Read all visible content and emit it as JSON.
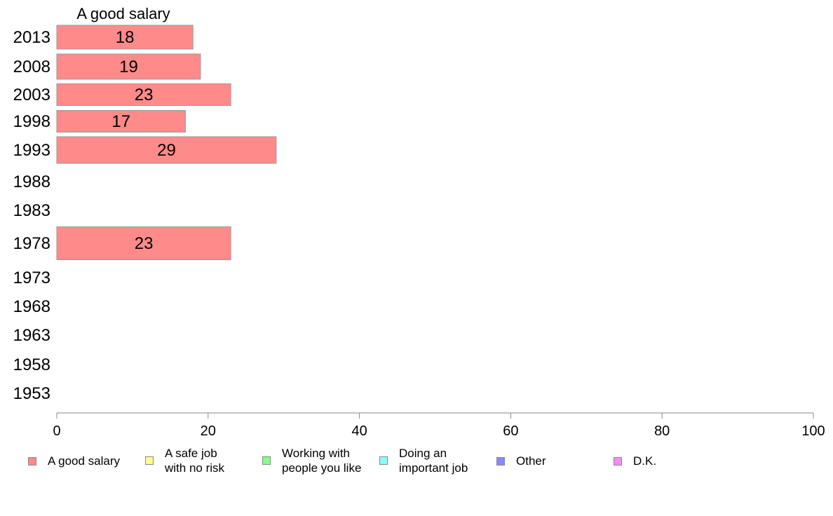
{
  "chart_data": {
    "type": "bar",
    "orientation": "horizontal",
    "title": "A good salary",
    "categories": [
      "2013",
      "2008",
      "2003",
      "1998",
      "1993",
      "1988",
      "1983",
      "1978",
      "1973",
      "1968",
      "1963",
      "1958",
      "1953"
    ],
    "series": [
      {
        "name": "A good salary",
        "color": "#ff8a8a",
        "values": [
          18,
          19,
          23,
          17,
          29,
          null,
          null,
          23,
          null,
          null,
          null,
          null,
          null
        ]
      }
    ],
    "data_labels": [
      "18",
      "19",
      "23",
      "17",
      "29",
      "",
      "",
      "23",
      "",
      "",
      "",
      "",
      ""
    ],
    "xlim": [
      0,
      100
    ],
    "xticks": [
      "0",
      "20",
      "40",
      "60",
      "80",
      "100"
    ],
    "grid": false
  },
  "legend": {
    "placement": "bottom",
    "items": [
      {
        "label": "A good salary",
        "color": "#ff8a8a"
      },
      {
        "label": "A safe job\nwith no risk",
        "color": "#ffff88"
      },
      {
        "label": "Working with\npeople you like",
        "color": "#88ff88"
      },
      {
        "label": "Doing an\nimportant job",
        "color": "#88ffff"
      },
      {
        "label": "Other",
        "color": "#8888ff"
      },
      {
        "label": "D.K.",
        "color": "#ff88ff"
      }
    ]
  }
}
